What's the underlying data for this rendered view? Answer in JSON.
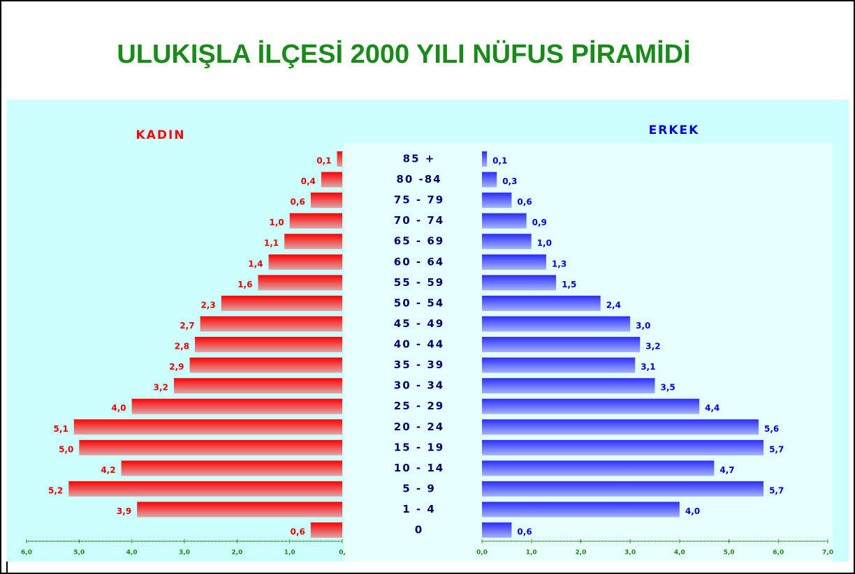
{
  "title": "ULUKIŞLA İLÇESİ 2000 YILI NÜFUS PİRAMİDİ",
  "chart_data": [
    {
      "type": "bar",
      "orientation": "horizontal",
      "reversed": true,
      "title": "KADIN",
      "color": "#ff0000",
      "values": [
        0.1,
        0.4,
        0.6,
        1.0,
        1.1,
        1.4,
        1.6,
        2.3,
        2.7,
        2.8,
        2.9,
        3.2,
        4.0,
        5.1,
        5.0,
        4.2,
        5.2,
        3.9,
        0.6
      ],
      "value_labels": [
        "0,1",
        "0,4",
        "0,6",
        "1,0",
        "1,1",
        "1,4",
        "1,6",
        "2,3",
        "2,7",
        "2,8",
        "2,9",
        "3,2",
        "4,0",
        "5,1",
        "5,0",
        "4,2",
        "5,2",
        "3,9",
        "0,6"
      ],
      "xlim": [
        0,
        6
      ],
      "xticks": [
        {
          "value": 6,
          "label": "6,0"
        },
        {
          "value": 5,
          "label": "5,0"
        },
        {
          "value": 4,
          "label": "4,0"
        },
        {
          "value": 3,
          "label": "3,0"
        },
        {
          "value": 2,
          "label": "2,0"
        },
        {
          "value": 1,
          "label": "1,0"
        },
        {
          "value": 0,
          "label": "0,"
        }
      ]
    },
    {
      "type": "bar",
      "orientation": "horizontal",
      "reversed": false,
      "title": "ERKEK",
      "color": "#2b2bff",
      "categories": [
        "85 +",
        "80 -84",
        "75 - 79",
        "70 - 74",
        "65 - 69",
        "60 - 64",
        "55 - 59",
        "50 - 54",
        "45 - 49",
        "40 - 44",
        "35 - 39",
        "30 - 34",
        "25 - 29",
        "20 - 24",
        "15 - 19",
        "10 - 14",
        "5 - 9",
        "1 - 4",
        "0"
      ],
      "values": [
        0.1,
        0.3,
        0.6,
        0.9,
        1.0,
        1.3,
        1.5,
        2.4,
        3.0,
        3.2,
        3.1,
        3.5,
        4.4,
        5.6,
        5.7,
        4.7,
        5.7,
        4.0,
        0.6
      ],
      "value_labels": [
        "0,1",
        "0,3",
        "0,6",
        "0,9",
        "1,0",
        "1,3",
        "1,5",
        "2,4",
        "3,0",
        "3,2",
        "3,1",
        "3,5",
        "4,4",
        "5,6",
        "5,7",
        "4,7",
        "5,7",
        "4,0",
        "0,6"
      ],
      "xlim": [
        0,
        7
      ],
      "xticks": [
        {
          "value": 0,
          "label": "0,0"
        },
        {
          "value": 1,
          "label": "1,0"
        },
        {
          "value": 2,
          "label": "2,0"
        },
        {
          "value": 3,
          "label": "3,0"
        },
        {
          "value": 4,
          "label": "4,0"
        },
        {
          "value": 5,
          "label": "5,0"
        },
        {
          "value": 6,
          "label": "6,0"
        },
        {
          "value": 7,
          "label": "7,0"
        }
      ]
    }
  ]
}
